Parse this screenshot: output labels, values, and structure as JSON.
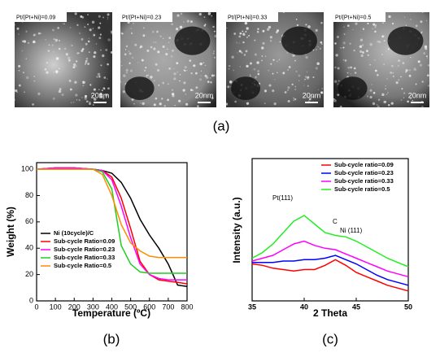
{
  "image_panel": {
    "caption": "(a)",
    "images": [
      {
        "label": "Pt/(Pt+Ni)=0.09",
        "scale": "20nm"
      },
      {
        "label": "Pt/(Pt+Ni)=0.23",
        "scale": "20nm"
      },
      {
        "label": "Pt/(Pt+Ni)=0.33",
        "scale": "20nm"
      },
      {
        "label": "Pt/(Pt+Ni)=0.5",
        "scale": "20nm"
      }
    ]
  },
  "chart_data": [
    {
      "type": "line",
      "caption": "(b)",
      "x_label": "Temperature (ºC)",
      "y_label": "Weight (%)",
      "x": [
        0,
        100,
        200,
        300,
        350,
        400,
        450,
        500,
        550,
        600,
        650,
        700,
        750,
        800
      ],
      "xlim": [
        0,
        800
      ],
      "xticks": [
        0,
        100,
        200,
        300,
        400,
        500,
        600,
        700,
        800
      ],
      "ylim": [
        0,
        105
      ],
      "yticks": [
        0,
        20,
        40,
        60,
        80,
        100
      ],
      "legend": "lower left",
      "series": [
        {
          "name": "Ni (10cycle)/C",
          "color": "#000000",
          "values": [
            100,
            101,
            101,
            100,
            99,
            97,
            90,
            78,
            62,
            50,
            40,
            28,
            12,
            11
          ]
        },
        {
          "name": "Sub-cycle Ratio=0.09",
          "color": "#ff0000",
          "values": [
            100,
            101,
            101,
            100,
            99,
            94,
            78,
            55,
            30,
            20,
            16,
            15,
            14,
            13
          ]
        },
        {
          "name": "Sub-cycle Ratio=0.23",
          "color": "#ff00ff",
          "values": [
            100,
            101,
            101,
            100,
            99,
            92,
            72,
            48,
            28,
            20,
            17,
            16,
            16,
            16
          ]
        },
        {
          "name": "Sub-cycle Ratio=0.33",
          "color": "#22cc22",
          "values": [
            100,
            100,
            100,
            100,
            98,
            85,
            42,
            28,
            22,
            21,
            21,
            21,
            21,
            21
          ]
        },
        {
          "name": "Sub-cycle Ratio=0.5",
          "color": "#ff8c00",
          "values": [
            100,
            100,
            100,
            100,
            96,
            80,
            58,
            44,
            38,
            34,
            33,
            33,
            33,
            33
          ]
        }
      ]
    },
    {
      "type": "line",
      "caption": "(c)",
      "x_label": "2 Theta",
      "y_label": "Intensity (a.u.)",
      "x": [
        35,
        36,
        37,
        38,
        39,
        40,
        41,
        42,
        43,
        44,
        45,
        46,
        47,
        48,
        49,
        50
      ],
      "xlim": [
        35,
        50
      ],
      "xticks": [
        35,
        40,
        45,
        50
      ],
      "ylim": [
        0,
        100
      ],
      "legend": "upper right",
      "annotations": [
        "Pt(111)",
        "C",
        "Ni (111)"
      ],
      "series": [
        {
          "name": "Sub-cycle ratio=0.09",
          "color": "#ff0000",
          "values": [
            26,
            25,
            23,
            22,
            21,
            22,
            22,
            25,
            29,
            25,
            20,
            17,
            14,
            11,
            9,
            7
          ]
        },
        {
          "name": "Sub-cycle ratio=0.23",
          "color": "#0000ff",
          "values": [
            27,
            27,
            27,
            28,
            28,
            29,
            29,
            30,
            32,
            29,
            26,
            22,
            18,
            15,
            13,
            11
          ]
        },
        {
          "name": "Sub-cycle ratio=0.33",
          "color": "#ff00ff",
          "values": [
            28,
            30,
            32,
            36,
            40,
            42,
            39,
            37,
            36,
            33,
            30,
            27,
            24,
            21,
            19,
            17
          ]
        },
        {
          "name": "Sub-cycle ratio=0.5",
          "color": "#22ee22",
          "values": [
            30,
            34,
            40,
            48,
            56,
            60,
            54,
            48,
            46,
            45,
            42,
            38,
            34,
            30,
            27,
            24
          ]
        }
      ]
    }
  ]
}
